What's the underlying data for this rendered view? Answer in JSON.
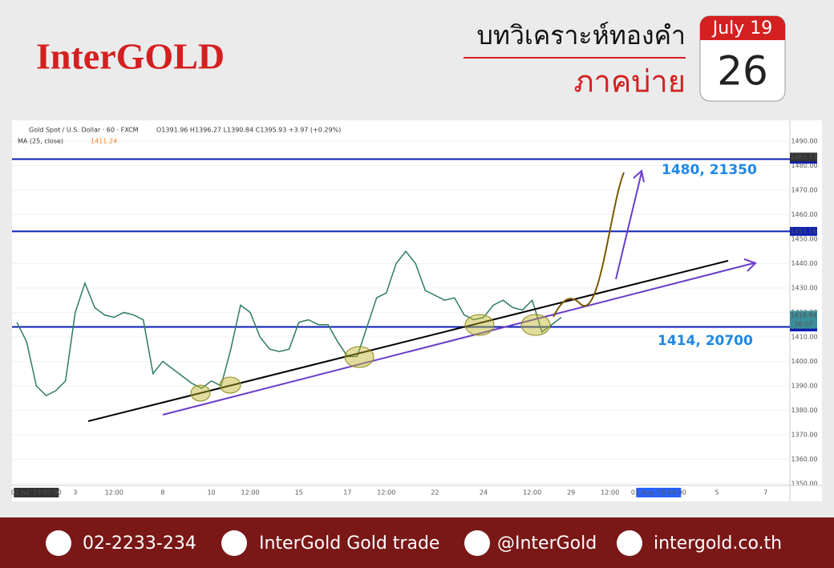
{
  "header": {
    "logo": "InterGOLD",
    "title": "บทวิเคราะห์ทองคำ",
    "subtitle": "ภาคบ่าย",
    "calendar_month": "July 19",
    "calendar_day": "26"
  },
  "chart_data": {
    "type": "line",
    "symbol_info": "Gold Spot / U.S. Dollar · 60 · FXCM",
    "ohlc_info": "O1391.96 H1396.27 L1390.84 C1395.93 +3.97 (+0.29%)",
    "indicator": "MA (25, close)",
    "indicator_value": "1411.24",
    "categories": [
      null,
      null,
      "01 Jul '19 07:00",
      null,
      null,
      null,
      "3",
      null,
      null,
      null,
      "12:00",
      null,
      null,
      null,
      null,
      "8",
      null,
      null,
      null,
      null,
      "10",
      null,
      null,
      null,
      "12:00",
      null,
      null,
      null,
      null,
      "15",
      null,
      null,
      null,
      null,
      "17",
      null,
      null,
      null,
      "12:00",
      null,
      null,
      null,
      null,
      "22",
      null,
      null,
      null,
      null,
      "24",
      null,
      null,
      null,
      null,
      "12:00",
      null,
      null,
      null,
      "29",
      null,
      null,
      null,
      "12:00",
      null,
      null,
      null,
      null,
      "01 Aug '19 04:00",
      null,
      null,
      null,
      null,
      null,
      "5",
      null,
      null,
      null,
      null,
      "7",
      null,
      null
    ],
    "values": [
      1416,
      1408,
      1390,
      1386,
      1388,
      1392,
      1420,
      1432,
      1422,
      1419,
      1418,
      1420,
      1419,
      1417,
      1395,
      1400,
      1397,
      1394,
      1391,
      1389,
      1392,
      1390,
      1405,
      1423,
      1420,
      1410,
      1405,
      1404,
      1405,
      1416,
      1417,
      1415,
      1415,
      1408,
      1402,
      1402,
      1414,
      1426,
      1428,
      1440,
      1445,
      1440,
      1429,
      1427,
      1425,
      1426,
      1419,
      1417,
      1418,
      1423,
      1425,
      1422,
      1421,
      1425,
      1412,
      1415,
      1418,
      null,
      null,
      null,
      null,
      null,
      null,
      null,
      null,
      null,
      null,
      null,
      null,
      null,
      null,
      null,
      null,
      null,
      null,
      null,
      null,
      null,
      null,
      null
    ],
    "color": "#2e7d5b",
    "ylim": [
      1349.3,
      1497.9
    ],
    "yticks": [
      {
        "value": 1350,
        "label": "1350.00"
      },
      {
        "value": 1360,
        "label": "1360.00"
      },
      {
        "value": 1370,
        "label": "1370.00"
      },
      {
        "value": 1380,
        "label": "1380.00"
      },
      {
        "value": 1390,
        "label": "1390.00"
      },
      {
        "value": 1400,
        "label": "1400.00"
      },
      {
        "value": 1410,
        "label": "1410.00"
      },
      {
        "value": 1420,
        "label": "1420.00"
      },
      {
        "value": 1430,
        "label": "1430.00"
      },
      {
        "value": 1440,
        "label": "1440.00"
      },
      {
        "value": 1450,
        "label": "1450.00"
      },
      {
        "value": 1460,
        "label": "1460.00"
      },
      {
        "value": 1470,
        "label": "1470.00"
      },
      {
        "value": 1480,
        "label": "1480.00"
      },
      {
        "value": 1490,
        "label": "1490.00"
      }
    ],
    "grid": true,
    "levels": [
      1482.67,
      1453.16,
      1414.07
    ],
    "level_color": "#0a1fb5",
    "price_labels": [
      1483.53,
      1418.84
    ],
    "countdown": "26:07",
    "annotations": [
      "1480, 21350",
      "1414, 20700"
    ],
    "annotation_color": "#1e88e5"
  },
  "footer": {
    "phone": "02-2233-234",
    "facebook": "InterGold Gold trade",
    "line": "@InterGold",
    "website": "intergold.co.th"
  }
}
